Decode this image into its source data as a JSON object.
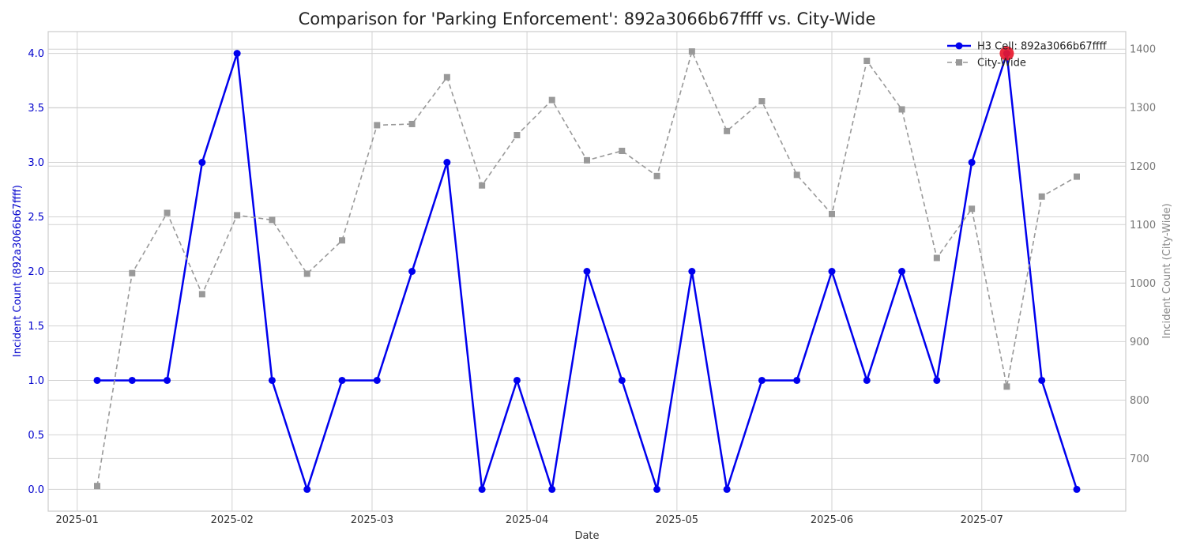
{
  "chart_data": {
    "type": "line",
    "title": "Comparison for 'Parking Enforcement': 892a3066b67ffff vs. City-Wide",
    "xlabel": "Date",
    "ylabel_left": "Incident Count (892a3066b67ffff)",
    "ylabel_right": "Incident Count (City-Wide)",
    "x_ticks": [
      "2025-01",
      "2025-02",
      "2025-03",
      "2025-04",
      "2025-05",
      "2025-06",
      "2025-07"
    ],
    "ylim_left": [
      -0.2,
      4.2
    ],
    "ylim_right": [
      610,
      1430
    ],
    "y_ticks_left": [
      "0.0",
      "0.5",
      "1.0",
      "1.5",
      "2.0",
      "2.5",
      "3.0",
      "3.5",
      "4.0"
    ],
    "y_ticks_right": [
      "700",
      "800",
      "900",
      "1000",
      "1100",
      "1200",
      "1300",
      "1400"
    ],
    "grid": true,
    "legend_position": "top-right",
    "x": [
      "2025-01-05",
      "2025-01-12",
      "2025-01-19",
      "2025-01-26",
      "2025-02-02",
      "2025-02-09",
      "2025-02-16",
      "2025-02-23",
      "2025-03-02",
      "2025-03-09",
      "2025-03-16",
      "2025-03-23",
      "2025-03-30",
      "2025-04-06",
      "2025-04-13",
      "2025-04-20",
      "2025-04-27",
      "2025-05-04",
      "2025-05-11",
      "2025-05-18",
      "2025-05-25",
      "2025-06-01",
      "2025-06-08",
      "2025-06-15",
      "2025-06-22",
      "2025-06-29",
      "2025-07-06",
      "2025-07-13",
      "2025-07-20"
    ],
    "series": [
      {
        "name": "H3 Cell: 892a3066b67ffff",
        "axis": "left",
        "style": "solid",
        "marker": "circle",
        "color": "#0000ee",
        "values": [
          1,
          1,
          1,
          3,
          4,
          1,
          0,
          1,
          1,
          2,
          3,
          0,
          1,
          0,
          2,
          1,
          0,
          2,
          0,
          1,
          1,
          2,
          1,
          2,
          1,
          3,
          4,
          1,
          0
        ]
      },
      {
        "name": "City-Wide",
        "axis": "right",
        "style": "dashed",
        "marker": "square",
        "color": "#999999",
        "values": [
          653,
          1017,
          1120,
          981,
          1116,
          1108,
          1016,
          1073,
          1270,
          1272,
          1352,
          1167,
          1253,
          1313,
          1210,
          1226,
          1183,
          1396,
          1260,
          1311,
          1185,
          1118,
          1380,
          1297,
          1043,
          1127,
          823,
          1148,
          1182
        ]
      }
    ],
    "highlight": {
      "index": 26,
      "color": "#e8192c"
    }
  }
}
